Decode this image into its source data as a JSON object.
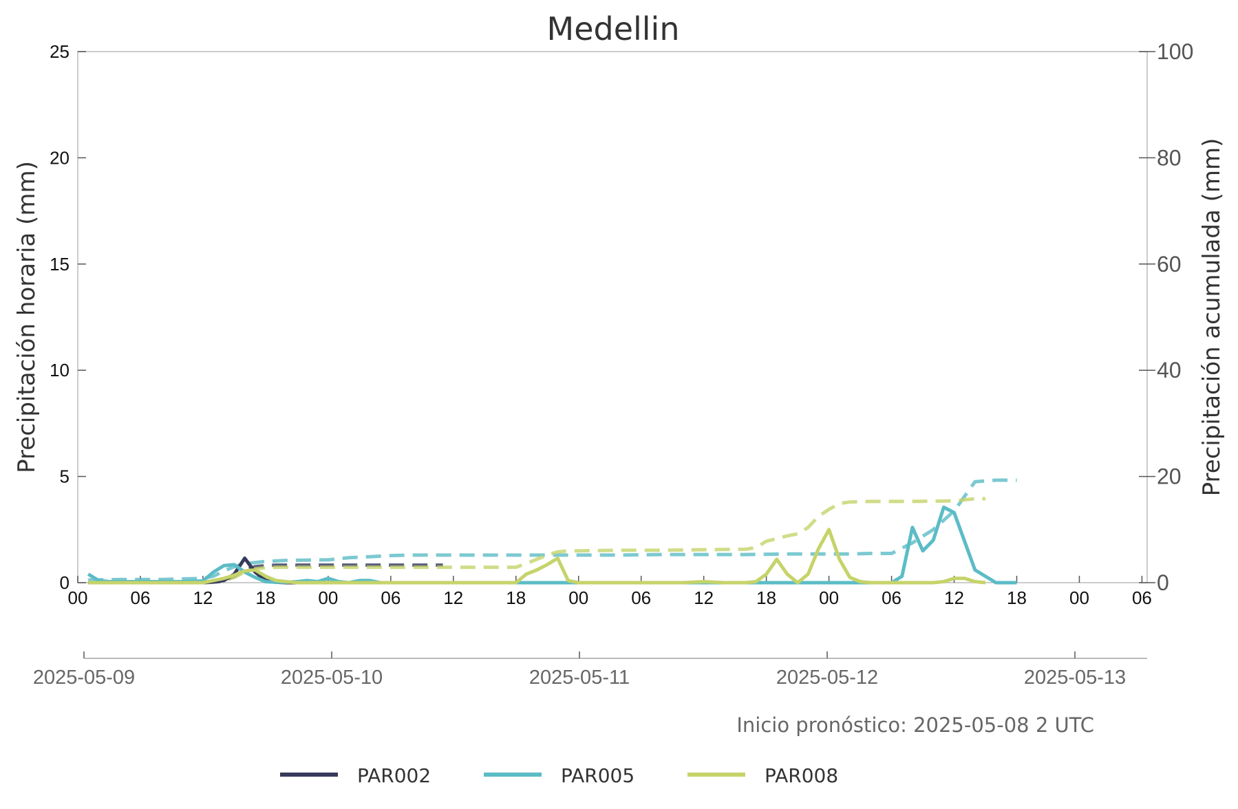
{
  "chart_data": {
    "type": "line",
    "title": "Medellin",
    "ylabel_left": "Precipitación horaria (mm)",
    "ylabel_right": "Precipitación acumulada (mm)",
    "ylim_left": [
      0,
      25
    ],
    "ylim_right": [
      0,
      100
    ],
    "yticks_left": [
      "0",
      "5",
      "10",
      "15",
      "20",
      "25"
    ],
    "yticks_right": [
      "0",
      "20",
      "40",
      "60",
      "80",
      "100"
    ],
    "x_start": "2025-05-09 00:00",
    "x_range_hours": [
      0,
      102.5
    ],
    "hour_ticks": [
      "00",
      "06",
      "12",
      "18",
      "00",
      "06",
      "12",
      "18",
      "00",
      "06",
      "12",
      "18",
      "00",
      "06",
      "12",
      "18",
      "00",
      "06"
    ],
    "date_ticks": [
      "2025-05-09",
      "2025-05-10",
      "2025-05-11",
      "2025-05-12",
      "2025-05-13"
    ],
    "forecast_init": "Inicio pronóstico: 2025-05-08 2 UTC",
    "grid": false,
    "legend_position": "bottom",
    "series": [
      {
        "name": "PAR002",
        "color": "#363b5c",
        "hourly": {
          "x": [
            1,
            2,
            3,
            4,
            5,
            6,
            7,
            8,
            9,
            10,
            11,
            12,
            13,
            14,
            15,
            16,
            17,
            18,
            19,
            20,
            21,
            22,
            23,
            24,
            25,
            26,
            27,
            28,
            29,
            30,
            31,
            32,
            33,
            34,
            35
          ],
          "y": [
            0,
            0,
            0,
            0,
            0,
            0,
            0,
            0,
            0,
            0,
            0,
            0,
            0.05,
            0.1,
            0.4,
            1.15,
            0.5,
            0.1,
            0.02,
            0,
            0,
            0.02,
            0,
            0,
            0,
            0,
            0,
            0,
            0,
            0,
            0,
            0,
            0,
            0,
            0
          ]
        },
        "cumulative": {
          "x": [
            1,
            5,
            10,
            12,
            13,
            14,
            15,
            16,
            17,
            18,
            19,
            20,
            24,
            28,
            32,
            35
          ],
          "y": [
            0,
            0,
            0,
            0,
            0.1,
            0.3,
            1.2,
            2.4,
            3.0,
            3.2,
            3.3,
            3.3,
            3.3,
            3.3,
            3.3,
            3.3
          ]
        }
      },
      {
        "name": "PAR005",
        "color": "#5bbcc6",
        "hourly": {
          "x": [
            1,
            2,
            3,
            4,
            6,
            8,
            10,
            12,
            13,
            14,
            15,
            16,
            17,
            18,
            19,
            20,
            21,
            22,
            23,
            24,
            25,
            26,
            27,
            28,
            29,
            30,
            31,
            32,
            34,
            36,
            40,
            44,
            48,
            52,
            56,
            60,
            64,
            68,
            71,
            72,
            73,
            74,
            75,
            76,
            77,
            78,
            79,
            80,
            81,
            82,
            83,
            84,
            86,
            88,
            90
          ],
          "y": [
            0.4,
            0.1,
            0.05,
            0.05,
            0.05,
            0.05,
            0.05,
            0.08,
            0.5,
            0.8,
            0.85,
            0.5,
            0.25,
            0.05,
            0.02,
            0.02,
            0.05,
            0.1,
            0.05,
            0.2,
            0.05,
            0,
            0.1,
            0.1,
            0,
            0,
            0,
            0,
            0,
            0,
            0,
            0,
            0,
            0,
            0,
            0,
            0,
            0,
            0,
            0,
            0,
            0,
            0,
            0,
            0,
            0,
            0.3,
            2.6,
            1.5,
            2.0,
            3.55,
            3.3,
            0.6,
            0,
            0
          ]
        },
        "cumulative": {
          "x": [
            1,
            4,
            8,
            12,
            13,
            14,
            15,
            16,
            17,
            18,
            20,
            24,
            26,
            28,
            30,
            32,
            36,
            40,
            44,
            48,
            52,
            56,
            60,
            64,
            68,
            70,
            72,
            74,
            76,
            78,
            80,
            82,
            84,
            86,
            88,
            90
          ],
          "y": [
            0.5,
            0.6,
            0.6,
            0.8,
            1.2,
            2.2,
            3.0,
            3.6,
            3.8,
            4.0,
            4.2,
            4.3,
            4.7,
            4.9,
            5.1,
            5.2,
            5.2,
            5.2,
            5.2,
            5.2,
            5.2,
            5.3,
            5.3,
            5.3,
            5.4,
            5.4,
            5.4,
            5.4,
            5.5,
            5.5,
            7.5,
            10.0,
            13.5,
            19.0,
            19.3,
            19.3
          ]
        }
      },
      {
        "name": "PAR008",
        "color": "#c6d36a",
        "hourly": {
          "x": [
            1,
            4,
            8,
            12,
            13,
            14,
            15,
            16,
            17,
            18,
            19,
            20,
            21,
            22,
            24,
            26,
            28,
            30,
            32,
            34,
            36,
            38,
            40,
            41,
            42,
            43,
            44,
            45,
            46,
            47,
            48,
            50,
            52,
            54,
            56,
            58,
            60,
            62,
            64,
            65,
            66,
            67,
            68,
            69,
            70,
            71,
            72,
            73,
            74,
            75,
            76,
            78,
            80,
            82,
            83,
            84,
            85,
            86,
            87
          ],
          "y": [
            0,
            0,
            0,
            0,
            0.1,
            0.2,
            0.35,
            0.55,
            0.6,
            0.3,
            0.1,
            0.05,
            0,
            0,
            0,
            0,
            0,
            0,
            0,
            0,
            0,
            0,
            0,
            0,
            0,
            0.4,
            0.6,
            0.85,
            1.15,
            0.1,
            0,
            0,
            0,
            0,
            0,
            0,
            0.05,
            0,
            0,
            0.05,
            0.4,
            1.1,
            0.4,
            0,
            0.4,
            1.6,
            2.5,
            1.1,
            0.25,
            0.05,
            0,
            0,
            0,
            0,
            0.05,
            0.2,
            0.2,
            0.05,
            0
          ]
        },
        "cumulative": {
          "x": [
            1,
            4,
            8,
            12,
            13,
            14,
            15,
            16,
            17,
            18,
            19,
            20,
            24,
            28,
            32,
            36,
            40,
            42,
            43,
            44,
            45,
            46,
            47,
            48,
            52,
            56,
            60,
            64,
            65,
            66,
            67,
            68,
            69,
            70,
            71,
            72,
            73,
            74,
            76,
            80,
            84,
            85,
            86,
            87
          ],
          "y": [
            0,
            0,
            0,
            0,
            0.2,
            0.5,
            1.0,
            2.0,
            2.6,
            2.8,
            2.9,
            2.9,
            2.9,
            2.9,
            2.9,
            2.9,
            2.9,
            2.9,
            3.6,
            4.4,
            5.2,
            5.8,
            6.0,
            6.0,
            6.1,
            6.1,
            6.2,
            6.3,
            6.6,
            7.8,
            8.3,
            8.8,
            9.2,
            10.4,
            12.5,
            13.8,
            14.9,
            15.2,
            15.3,
            15.3,
            15.4,
            15.6,
            15.8,
            15.8
          ]
        }
      }
    ]
  }
}
